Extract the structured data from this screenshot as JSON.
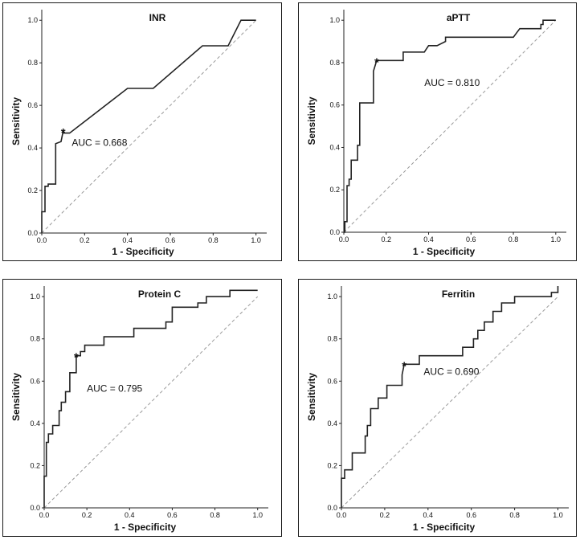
{
  "chart_data": [
    {
      "type": "line",
      "title": "INR",
      "xlabel": "1 - Specificity",
      "ylabel": "Sensitivity",
      "xlim": [
        0,
        1.05
      ],
      "ylim": [
        0,
        1.05
      ],
      "x_ticks": [
        "0.0",
        "0.2",
        "0.4",
        "0.6",
        "0.8",
        "1.0"
      ],
      "y_ticks": [
        "0.0",
        "0.2",
        "0.4",
        "0.6",
        "0.8",
        "1.0"
      ],
      "auc_label": "AUC = 0.668",
      "cutoff_point": [
        0.1,
        0.48
      ],
      "series": [
        {
          "name": "ROC",
          "x": [
            0,
            0,
            0.015,
            0.015,
            0.03,
            0.03,
            0.065,
            0.065,
            0.09,
            0.1,
            0.1,
            0.13,
            0.4,
            0.52,
            0.75,
            0.87,
            0.93,
            0.97,
            1.0
          ],
          "y": [
            0,
            0.1,
            0.1,
            0.22,
            0.22,
            0.23,
            0.23,
            0.42,
            0.43,
            0.48,
            0.47,
            0.47,
            0.68,
            0.68,
            0.88,
            0.88,
            1.0,
            1.0,
            1.0
          ]
        },
        {
          "name": "Reference",
          "x": [
            0,
            1
          ],
          "y": [
            0,
            1
          ]
        }
      ]
    },
    {
      "type": "line",
      "title": "aPTT",
      "xlabel": "1 - Specificity",
      "ylabel": "Sensitivity",
      "xlim": [
        0,
        1.05
      ],
      "ylim": [
        0,
        1.05
      ],
      "x_ticks": [
        "0.0",
        "0.2",
        "0.4",
        "0.6",
        "0.8",
        "1.0"
      ],
      "y_ticks": [
        "0.0",
        "0.2",
        "0.4",
        "0.6",
        "0.8",
        "1.0"
      ],
      "auc_label": "AUC = 0.810",
      "cutoff_point": [
        0.155,
        0.81
      ],
      "series": [
        {
          "name": "ROC",
          "x": [
            0,
            0.005,
            0.005,
            0.015,
            0.015,
            0.025,
            0.025,
            0.035,
            0.035,
            0.065,
            0.065,
            0.075,
            0.075,
            0.14,
            0.14,
            0.155,
            0.28,
            0.28,
            0.38,
            0.4,
            0.44,
            0.48,
            0.48,
            0.5,
            0.8,
            0.83,
            0.93,
            0.93,
            0.94,
            0.94,
            1.0
          ],
          "y": [
            0,
            0,
            0.05,
            0.05,
            0.22,
            0.22,
            0.25,
            0.25,
            0.34,
            0.34,
            0.41,
            0.41,
            0.61,
            0.61,
            0.76,
            0.81,
            0.81,
            0.85,
            0.85,
            0.88,
            0.88,
            0.9,
            0.92,
            0.92,
            0.92,
            0.96,
            0.96,
            0.98,
            0.98,
            1.0,
            1.0
          ]
        },
        {
          "name": "Reference",
          "x": [
            0,
            1
          ],
          "y": [
            0,
            1
          ]
        }
      ]
    },
    {
      "type": "line",
      "title": "Protein C",
      "xlabel": "1 - Specificity",
      "ylabel": "Sensitivity",
      "xlim": [
        0,
        1.05
      ],
      "ylim": [
        0,
        1.05
      ],
      "x_ticks": [
        "0.0",
        "0.2",
        "0.4",
        "0.6",
        "0.8",
        "1.0"
      ],
      "y_ticks": [
        "0.0",
        "0.2",
        "0.4",
        "0.6",
        "0.8",
        "1.0"
      ],
      "auc_label": "AUC = 0.795",
      "cutoff_point": [
        0.15,
        0.72
      ],
      "series": [
        {
          "name": "ROC",
          "x": [
            0,
            0,
            0.01,
            0.01,
            0.02,
            0.02,
            0.04,
            0.04,
            0.07,
            0.07,
            0.08,
            0.08,
            0.1,
            0.1,
            0.12,
            0.12,
            0.15,
            0.15,
            0.17,
            0.17,
            0.19,
            0.19,
            0.28,
            0.28,
            0.42,
            0.42,
            0.57,
            0.57,
            0.6,
            0.6,
            0.72,
            0.72,
            0.76,
            0.76,
            0.87,
            0.87,
            1.0
          ],
          "y": [
            0,
            0.15,
            0.15,
            0.31,
            0.31,
            0.35,
            0.35,
            0.39,
            0.39,
            0.46,
            0.46,
            0.5,
            0.5,
            0.55,
            0.55,
            0.64,
            0.64,
            0.72,
            0.72,
            0.74,
            0.74,
            0.77,
            0.77,
            0.81,
            0.81,
            0.85,
            0.85,
            0.88,
            0.88,
            0.95,
            0.95,
            0.97,
            0.97,
            1.0,
            1.0,
            1.03,
            1.03
          ]
        },
        {
          "name": "Reference",
          "x": [
            0,
            1
          ],
          "y": [
            0,
            1
          ]
        }
      ]
    },
    {
      "type": "line",
      "title": "Ferritin",
      "xlabel": "1 - Specificity",
      "ylabel": "Sensitivity",
      "xlim": [
        0,
        1.05
      ],
      "ylim": [
        0,
        1.05
      ],
      "x_ticks": [
        "0.0",
        "0.2",
        "0.4",
        "0.6",
        "0.8",
        "1.0"
      ],
      "y_ticks": [
        "0.0",
        "0.2",
        "0.4",
        "0.6",
        "0.8",
        "1.0"
      ],
      "auc_label": "AUC = 0.690",
      "cutoff_point": [
        0.29,
        0.68
      ],
      "series": [
        {
          "name": "ROC",
          "x": [
            0,
            0,
            0.015,
            0.015,
            0.05,
            0.05,
            0.11,
            0.11,
            0.12,
            0.12,
            0.135,
            0.135,
            0.17,
            0.17,
            0.21,
            0.21,
            0.28,
            0.28,
            0.29,
            0.36,
            0.36,
            0.56,
            0.56,
            0.61,
            0.61,
            0.63,
            0.63,
            0.66,
            0.66,
            0.7,
            0.7,
            0.74,
            0.74,
            0.8,
            0.8,
            0.97,
            0.97,
            1.0,
            1.0
          ],
          "y": [
            0,
            0.14,
            0.14,
            0.18,
            0.18,
            0.26,
            0.26,
            0.34,
            0.34,
            0.39,
            0.39,
            0.47,
            0.47,
            0.52,
            0.52,
            0.58,
            0.58,
            0.63,
            0.68,
            0.68,
            0.72,
            0.72,
            0.76,
            0.76,
            0.8,
            0.8,
            0.84,
            0.84,
            0.88,
            0.88,
            0.93,
            0.93,
            0.97,
            0.97,
            1.0,
            1.0,
            1.02,
            1.02,
            1.05
          ]
        },
        {
          "name": "Reference",
          "x": [
            0,
            1
          ],
          "y": [
            0,
            1
          ]
        }
      ]
    }
  ]
}
